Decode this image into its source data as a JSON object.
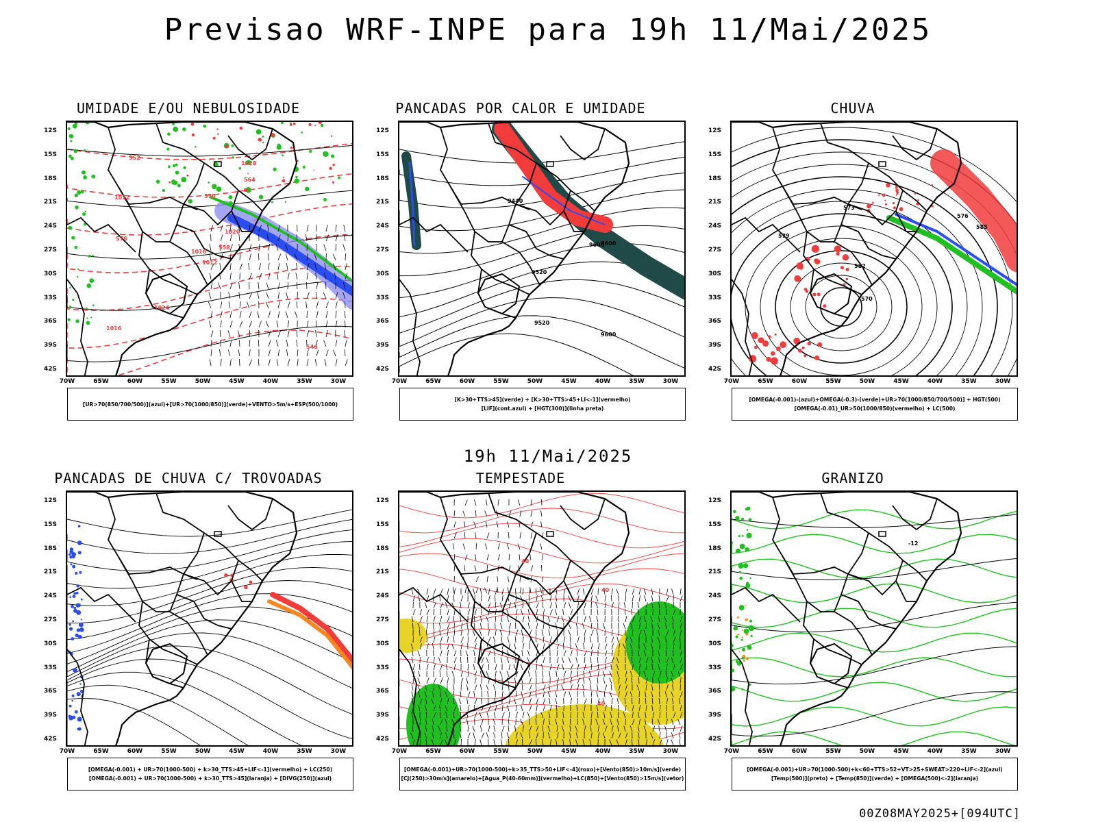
{
  "title": "Previsao WRF-INPE  para 19h 11/Mai/2025",
  "mid_time": "19h 11/Mai/2025",
  "footer": "00Z08MAY2025+[094UTC]",
  "lat_labels": [
    "12S",
    "15S",
    "18S",
    "21S",
    "24S",
    "27S",
    "30S",
    "33S",
    "36S",
    "39S",
    "42S"
  ],
  "lon_labels": [
    "70W",
    "65W",
    "60W",
    "55W",
    "50W",
    "45W",
    "40W",
    "35W",
    "30W"
  ],
  "colors": {
    "red": "#f23c3c",
    "green": "#21c021",
    "blue": "#2a4df2",
    "orange": "#f7871f",
    "darkteal": "#1f4a47",
    "yellow": "#e8d426",
    "lavender": "#8e8ef2",
    "black": "#000000"
  },
  "panels": [
    {
      "title": "UMIDADE E/OU NEBULOSIDADE",
      "legend": [
        "[UR>70(850/700/500)](azul)+[UR>70(1000/850)](verde)+VENTO>5m/s+ESP(500/1000)"
      ],
      "contour_labels": [
        "1012",
        "1012",
        "1016",
        "1016",
        "1020",
        "1024",
        "1028",
        "570",
        "564",
        "558",
        "552",
        "546",
        "576"
      ]
    },
    {
      "title": "PANCADAS POR CALOR E UMIDADE",
      "legend": [
        "[K>30+TTS>45](verde) + [K>30+TTS>45+LI<-1](vermelho)",
        "[LIF](cont.azul) + [HGT(300)](linha preta)"
      ],
      "contour_labels": [
        "9600",
        "9600",
        "9600",
        "9520",
        "9520",
        "9440"
      ]
    },
    {
      "title": "CHUVA",
      "legend": [
        "[OMEGA(-0.001)-(azul)+OMEGA(-0.3)-(verde)+UR>70(1000/850/700/500)] + HGT(500)",
        "[OMEGA(-0.01)_UR>50(1000/850)(vermelho) + LC(500)"
      ],
      "contour_labels": [
        "585",
        "582",
        "579",
        "576",
        "573",
        "570"
      ]
    },
    {
      "title": "PANCADAS DE CHUVA C/ TROVOADAS",
      "legend": [
        "[OMEGA(-0.001) + UR>70(1000-500) + k>30_TTS>45+LIF<-1](vermelho) + LC(250)",
        "[OMEGA(-0.001) + UR>70(1000-500) + k>30_TTS>45](laranja) + [DIVG(250)](azul)"
      ],
      "contour_labels": []
    },
    {
      "title": "TEMPESTADE",
      "legend": [
        "[OMEGA(-0.001)+UR>70(1000-500)+k>35_TTS>50+LIF<-4](roxo)+[Vento(850)>10m/s](verde)",
        "[CJ(250)>30m/s](amarelo)+[Agua_P(40-60mm)](vermelho)+LC(850)+[Vento(850)>15m/s](vetor)"
      ],
      "contour_labels": [
        "40",
        "40",
        "40"
      ]
    },
    {
      "title": "GRANIZO",
      "legend": [
        "[OMEGA(-0.001)+UR>70(1000-500)+k<60+TTS>52+VT>25+SWEAT>220+LIF<-2](azul)",
        "[Temp(500)](preto) + [Temp(850)](verde) + [OMEGA(500)<-2](laranja)"
      ],
      "contour_labels": [
        "-12"
      ]
    }
  ]
}
